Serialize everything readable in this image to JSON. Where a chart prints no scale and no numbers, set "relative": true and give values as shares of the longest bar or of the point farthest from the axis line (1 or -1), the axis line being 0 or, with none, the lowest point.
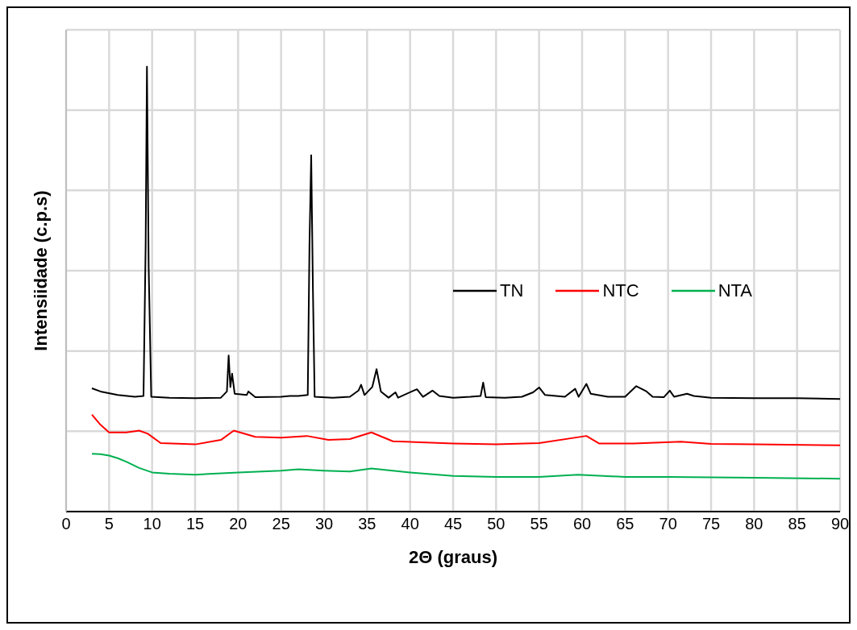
{
  "chart_data": {
    "type": "line",
    "xlabel": "2Θ (graus)",
    "ylabel": "Intensiidade (c.p.s)",
    "relative": true,
    "xlim": [
      0,
      90
    ],
    "xticks": [
      0,
      5,
      10,
      15,
      20,
      25,
      30,
      35,
      40,
      45,
      50,
      55,
      60,
      65,
      70,
      75,
      80,
      85,
      90
    ],
    "grid": true,
    "legend": "right",
    "marker": "none",
    "line_style": "solid",
    "series": [
      {
        "name": "TN",
        "color": "#000000",
        "x": [
          3,
          4,
          6,
          8,
          9.0,
          9.25,
          9.4,
          9.6,
          9.9,
          12,
          15,
          18,
          18.7,
          18.9,
          19.1,
          19.3,
          19.6,
          21,
          21.2,
          22,
          25,
          26,
          27,
          28.1,
          28.3,
          28.5,
          28.7,
          28.9,
          31,
          33,
          34.0,
          34.3,
          34.7,
          35.6,
          36.1,
          36.6,
          37.5,
          38.3,
          38.6,
          40.2,
          40.8,
          41.5,
          42.6,
          43.4,
          45,
          47,
          48.2,
          48.5,
          48.8,
          51,
          53,
          54.3,
          55,
          55.7,
          58,
          59.2,
          59.6,
          60.5,
          61,
          63,
          65,
          66.3,
          67,
          67.5,
          68.2,
          69.5,
          70.2,
          70.7,
          72.2,
          73,
          75,
          80,
          85,
          90
        ],
        "values": [
          0.277,
          0.27,
          0.262,
          0.258,
          0.26,
          0.6,
          1.0,
          0.55,
          0.258,
          0.256,
          0.255,
          0.256,
          0.27,
          0.351,
          0.28,
          0.31,
          0.265,
          0.262,
          0.27,
          0.257,
          0.258,
          0.26,
          0.26,
          0.262,
          0.6,
          0.801,
          0.5,
          0.258,
          0.256,
          0.258,
          0.272,
          0.285,
          0.262,
          0.28,
          0.32,
          0.27,
          0.256,
          0.268,
          0.256,
          0.27,
          0.275,
          0.258,
          0.272,
          0.26,
          0.256,
          0.258,
          0.26,
          0.29,
          0.257,
          0.256,
          0.258,
          0.268,
          0.279,
          0.262,
          0.258,
          0.276,
          0.258,
          0.287,
          0.265,
          0.258,
          0.258,
          0.282,
          0.275,
          0.27,
          0.258,
          0.257,
          0.272,
          0.258,
          0.265,
          0.26,
          0.256,
          0.255,
          0.255,
          0.253
        ]
      },
      {
        "name": "NTC",
        "color": "#ff0000",
        "x": [
          3,
          4,
          5,
          7,
          8.5,
          9.5,
          11,
          15,
          18,
          19.5,
          22,
          25,
          28,
          30.5,
          33,
          35.5,
          38,
          45,
          50,
          55,
          60.5,
          62,
          66,
          71.5,
          75,
          80,
          90
        ],
        "values": [
          0.218,
          0.195,
          0.178,
          0.178,
          0.182,
          0.175,
          0.154,
          0.151,
          0.161,
          0.182,
          0.168,
          0.166,
          0.17,
          0.161,
          0.163,
          0.178,
          0.158,
          0.153,
          0.151,
          0.154,
          0.17,
          0.153,
          0.153,
          0.157,
          0.152,
          0.151,
          0.149
        ]
      },
      {
        "name": "NTA",
        "color": "#00b050",
        "x": [
          3,
          4,
          5,
          6,
          7,
          8.5,
          10,
          12,
          15,
          20,
          25,
          27,
          30,
          33,
          35.5,
          40,
          45,
          50,
          55,
          59.5,
          65,
          70,
          75,
          80,
          90
        ],
        "values": [
          0.13,
          0.129,
          0.126,
          0.12,
          0.112,
          0.098,
          0.088,
          0.085,
          0.083,
          0.088,
          0.092,
          0.095,
          0.092,
          0.09,
          0.097,
          0.088,
          0.08,
          0.078,
          0.078,
          0.083,
          0.078,
          0.078,
          0.077,
          0.076,
          0.074
        ]
      }
    ]
  }
}
